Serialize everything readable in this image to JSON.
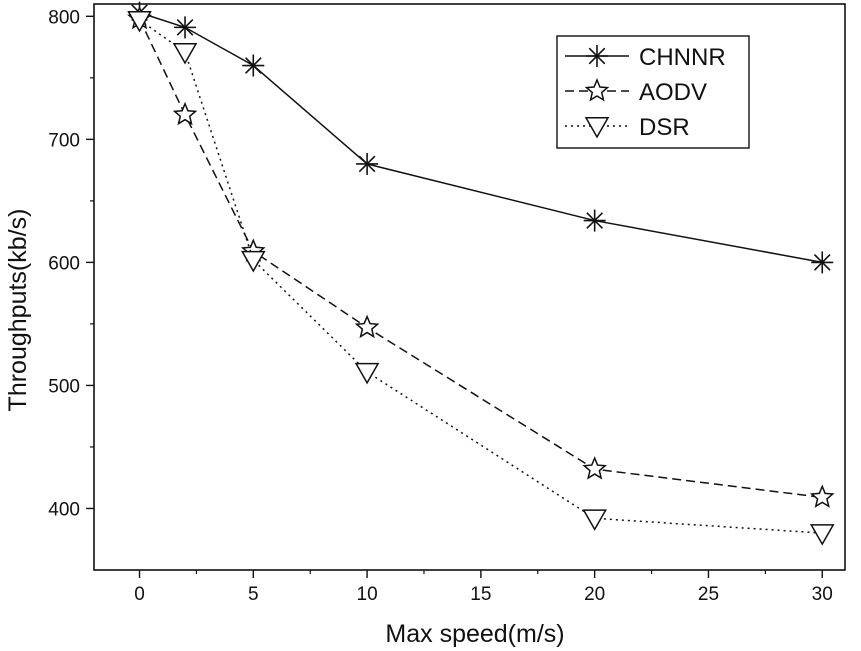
{
  "chart_data": {
    "type": "line",
    "title": "",
    "xlabel": "Max speed(m/s)",
    "ylabel": "Throughputs(kb/s)",
    "xlim": [
      -2,
      31
    ],
    "ylim": [
      350,
      810
    ],
    "xticks": [
      0,
      5,
      10,
      15,
      20,
      25,
      30
    ],
    "yticks": [
      400,
      500,
      600,
      700,
      800
    ],
    "legend_position": "top-right",
    "x": [
      0,
      2,
      5,
      10,
      20,
      30
    ],
    "series": [
      {
        "name": "CHNNR",
        "marker": "asterisk",
        "line_style": "solid",
        "values": [
          803,
          791,
          760,
          680,
          634,
          600
        ]
      },
      {
        "name": "AODV",
        "marker": "star",
        "line_style": "dashed",
        "values": [
          798,
          720,
          609,
          547,
          432,
          409
        ]
      },
      {
        "name": "DSR",
        "marker": "down-triangle",
        "line_style": "dotted",
        "values": [
          797,
          771,
          602,
          511,
          392,
          380
        ]
      }
    ]
  },
  "colors": {
    "ink": "#111111",
    "background": "#ffffff"
  }
}
